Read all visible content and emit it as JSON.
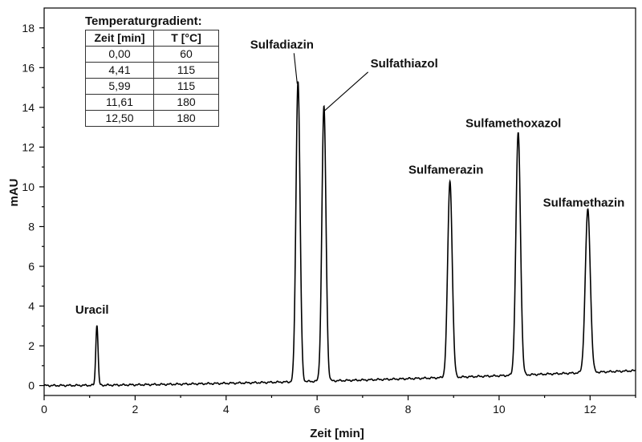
{
  "chart_data": {
    "type": "line",
    "title": "",
    "xlabel": "Zeit [min]",
    "ylabel": "mAU",
    "xlim": [
      0,
      13
    ],
    "ylim": [
      -0.5,
      19
    ],
    "xticks": [
      0,
      2,
      4,
      6,
      8,
      10,
      12
    ],
    "yticks": [
      0,
      2,
      4,
      6,
      8,
      10,
      12,
      14,
      16,
      18
    ],
    "grid": false,
    "baseline": {
      "start": 0.0,
      "end": 0.75
    },
    "peaks": [
      {
        "name": "Uracil",
        "t": 1.16,
        "height": 3.05
      },
      {
        "name": "Sulfadiazin",
        "t": 5.58,
        "height": 15.15
      },
      {
        "name": "Sulfathiazol",
        "t": 6.15,
        "height": 13.8
      },
      {
        "name": "Sulfamerazin",
        "t": 8.92,
        "height": 9.85
      },
      {
        "name": "Sulfamethoxazol",
        "t": 10.42,
        "height": 12.2
      },
      {
        "name": "Sulfamethazin",
        "t": 11.95,
        "height": 8.2
      }
    ]
  },
  "gradient_table": {
    "title": "Temperaturgradient:",
    "headers": [
      "Zeit [min]",
      "T [°C]"
    ],
    "rows": [
      [
        "0,00",
        "60"
      ],
      [
        "4,41",
        "115"
      ],
      [
        "5,99",
        "115"
      ],
      [
        "11,61",
        "180"
      ],
      [
        "12,50",
        "180"
      ]
    ]
  }
}
